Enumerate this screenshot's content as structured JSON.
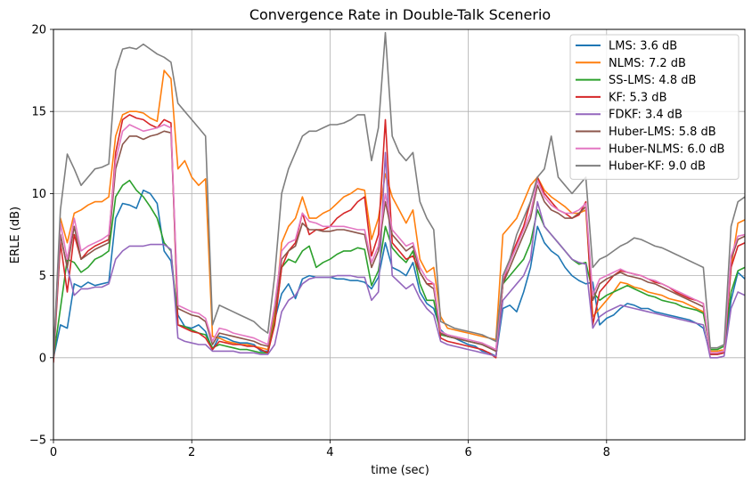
{
  "chart_data": {
    "type": "line",
    "title": "Convergence Rate in Double-Talk Scenerio",
    "xlabel": "time (sec)",
    "ylabel": "ERLE (dB)",
    "xlim": [
      0,
      10
    ],
    "ylim": [
      -5,
      20
    ],
    "xticks": [
      0,
      2,
      4,
      6,
      8
    ],
    "yticks": [
      -5,
      0,
      5,
      10,
      15,
      20
    ],
    "grid": true,
    "legend_position": "top-right",
    "x": [
      0,
      0.1,
      0.2,
      0.3,
      0.4,
      0.5,
      0.6,
      0.7,
      0.8,
      0.9,
      1.0,
      1.1,
      1.2,
      1.3,
      1.4,
      1.5,
      1.6,
      1.7,
      1.8,
      1.9,
      2.0,
      2.1,
      2.2,
      2.3,
      2.4,
      2.5,
      2.6,
      2.7,
      2.8,
      2.9,
      3.0,
      3.1,
      3.2,
      3.3,
      3.4,
      3.5,
      3.6,
      3.7,
      3.8,
      3.9,
      4.0,
      4.1,
      4.2,
      4.3,
      4.4,
      4.5,
      4.6,
      4.7,
      4.8,
      4.9,
      5.0,
      5.1,
      5.2,
      5.3,
      5.4,
      5.5,
      5.6,
      5.7,
      5.8,
      5.9,
      6.0,
      6.1,
      6.2,
      6.3,
      6.4,
      6.5,
      6.6,
      6.7,
      6.8,
      6.9,
      7.0,
      7.1,
      7.2,
      7.3,
      7.4,
      7.5,
      7.6,
      7.7,
      7.8,
      7.9,
      8.0,
      8.1,
      8.2,
      8.3,
      8.4,
      8.5,
      8.6,
      8.7,
      8.8,
      8.9,
      9.0,
      9.1,
      9.2,
      9.3,
      9.4,
      9.5,
      9.6,
      9.7,
      9.8,
      9.9,
      10.0
    ],
    "series": [
      {
        "name": "LMS: 3.6 dB",
        "color": "#1f77b4",
        "values": [
          0,
          2,
          1.8,
          4.5,
          4.3,
          4.6,
          4.4,
          4.5,
          4.6,
          8.5,
          9.4,
          9.3,
          9.1,
          10.2,
          10.0,
          9.4,
          6.5,
          5.9,
          2.6,
          1.9,
          1.8,
          2.0,
          1.6,
          0.5,
          1.3,
          1.2,
          1.0,
          0.9,
          0.9,
          0.8,
          0.4,
          0.4,
          2.3,
          3.9,
          4.5,
          3.6,
          4.8,
          5.0,
          4.9,
          4.9,
          4.9,
          4.8,
          4.8,
          4.7,
          4.7,
          4.6,
          4.2,
          4.9,
          7.0,
          5.5,
          5.3,
          5.0,
          5.8,
          4.0,
          3.3,
          3.0,
          1.7,
          1.3,
          1.2,
          1.0,
          0.8,
          0.7,
          0.4,
          0.3,
          0.1,
          3.0,
          3.2,
          2.8,
          4.0,
          5.5,
          8.0,
          7.0,
          6.5,
          6.2,
          5.5,
          5.0,
          4.7,
          4.5,
          4.6,
          2.0,
          2.4,
          2.6,
          3.0,
          3.3,
          3.2,
          3.0,
          3.0,
          2.8,
          2.7,
          2.6,
          2.5,
          2.4,
          2.3,
          2.1,
          1.8,
          0.2,
          0.2,
          0.3,
          3.5,
          5.2,
          4.8
        ]
      },
      {
        "name": "NLMS: 7.2 dB",
        "color": "#ff7f0e",
        "values": [
          0,
          8.5,
          7.0,
          8.8,
          9.0,
          9.3,
          9.5,
          9.5,
          9.8,
          13.5,
          14.8,
          15.0,
          15.0,
          14.9,
          14.6,
          14.4,
          17.5,
          17.0,
          11.5,
          12.0,
          11.0,
          10.5,
          10.9,
          1.3,
          1.2,
          1.0,
          0.9,
          0.8,
          0.8,
          0.7,
          0.6,
          0.5,
          2.5,
          7.0,
          8.0,
          8.5,
          9.8,
          8.5,
          8.5,
          8.8,
          9.0,
          9.4,
          9.8,
          10.0,
          10.3,
          10.2,
          7.2,
          8.5,
          11.2,
          9.8,
          9.0,
          8.2,
          9.0,
          6.0,
          5.2,
          5.5,
          2.5,
          1.8,
          1.7,
          1.6,
          1.5,
          1.4,
          1.3,
          1.2,
          1.1,
          7.5,
          8.0,
          8.5,
          9.5,
          10.5,
          11.0,
          10.2,
          9.8,
          9.5,
          9.2,
          8.8,
          8.8,
          9.0,
          2.5,
          3.0,
          3.5,
          4.0,
          4.6,
          4.5,
          4.3,
          4.2,
          4.0,
          3.9,
          3.8,
          3.6,
          3.5,
          3.4,
          3.2,
          3.0,
          2.8,
          0.4,
          0.4,
          0.5,
          5.5,
          8.2,
          8.4
        ]
      },
      {
        "name": "SS-LMS: 4.8 dB",
        "color": "#2ca02c",
        "values": [
          0,
          3.0,
          6.0,
          5.8,
          5.2,
          5.5,
          6.0,
          6.2,
          6.5,
          9.8,
          10.5,
          10.8,
          10.2,
          9.8,
          9.2,
          8.5,
          7.0,
          6.5,
          2.0,
          1.9,
          1.7,
          1.5,
          1.4,
          0.6,
          0.8,
          0.7,
          0.6,
          0.5,
          0.5,
          0.4,
          0.3,
          0.3,
          2.2,
          5.5,
          6.0,
          5.8,
          6.5,
          6.8,
          5.5,
          5.8,
          6.0,
          6.3,
          6.5,
          6.5,
          6.7,
          6.6,
          4.4,
          5.3,
          8.0,
          6.7,
          6.2,
          5.8,
          6.5,
          4.5,
          3.5,
          3.5,
          1.4,
          1.3,
          1.2,
          1.1,
          1.0,
          0.9,
          0.8,
          0.6,
          0.4,
          4.5,
          5.0,
          5.5,
          6.0,
          7.0,
          9.0,
          8.0,
          7.5,
          7.0,
          6.5,
          6.0,
          5.7,
          5.8,
          4.0,
          3.5,
          3.8,
          4.0,
          4.2,
          4.4,
          4.2,
          4.0,
          3.8,
          3.7,
          3.5,
          3.4,
          3.3,
          3.1,
          3.0,
          2.9,
          2.7,
          0.5,
          0.5,
          0.7,
          4.0,
          5.3,
          5.5
        ]
      },
      {
        "name": "KF: 5.3 dB",
        "color": "#d62728",
        "values": [
          -0.3,
          7.0,
          4.0,
          7.5,
          6.0,
          6.5,
          6.8,
          7.0,
          7.2,
          12.5,
          14.5,
          14.8,
          14.6,
          14.5,
          14.2,
          14.0,
          14.5,
          14.3,
          2.0,
          1.8,
          1.6,
          1.5,
          1.2,
          0.5,
          1.0,
          0.9,
          0.8,
          0.8,
          0.7,
          0.7,
          0.5,
          0.3,
          2.0,
          5.5,
          6.5,
          7.0,
          8.8,
          7.5,
          7.8,
          7.8,
          8.0,
          8.5,
          8.8,
          9.0,
          9.5,
          9.8,
          6.2,
          7.5,
          14.5,
          7.0,
          6.5,
          6.0,
          6.2,
          5.2,
          4.5,
          4.5,
          1.2,
          1.0,
          0.9,
          0.8,
          0.7,
          0.6,
          0.5,
          0.3,
          0.0,
          4.5,
          6.0,
          7.0,
          8.0,
          9.5,
          11.0,
          10.0,
          9.5,
          9.0,
          8.8,
          8.5,
          8.7,
          9.5,
          2.0,
          4.0,
          4.5,
          5.0,
          5.3,
          5.2,
          5.1,
          5.0,
          4.8,
          4.6,
          4.5,
          4.3,
          4.0,
          3.8,
          3.6,
          3.5,
          3.3,
          0.2,
          0.2,
          0.3,
          5.5,
          6.8,
          7.0
        ]
      },
      {
        "name": "FDKF: 3.4 dB",
        "color": "#9467bd",
        "values": [
          0,
          7.5,
          5.5,
          3.8,
          4.2,
          4.2,
          4.3,
          4.3,
          4.5,
          6.0,
          6.5,
          6.8,
          6.8,
          6.8,
          6.9,
          6.9,
          6.9,
          6.6,
          1.2,
          1.0,
          0.9,
          0.8,
          0.8,
          0.4,
          0.4,
          0.4,
          0.4,
          0.3,
          0.3,
          0.3,
          0.2,
          0.2,
          0.8,
          2.8,
          3.5,
          3.8,
          4.5,
          4.8,
          4.9,
          4.9,
          4.9,
          5.0,
          5.0,
          5.0,
          4.9,
          4.9,
          3.5,
          4.0,
          12.5,
          5.0,
          4.6,
          4.2,
          4.5,
          3.6,
          3.0,
          2.6,
          1.0,
          0.8,
          0.7,
          0.6,
          0.5,
          0.4,
          0.3,
          0.2,
          0.1,
          3.5,
          4.0,
          4.5,
          5.0,
          6.0,
          9.5,
          8.0,
          7.5,
          7.0,
          6.5,
          6.0,
          5.8,
          5.7,
          1.8,
          2.5,
          2.8,
          3.0,
          3.2,
          3.1,
          3.0,
          2.9,
          2.8,
          2.7,
          2.6,
          2.5,
          2.4,
          2.3,
          2.2,
          2.1,
          2.0,
          0.0,
          0.0,
          0.1,
          3.0,
          4.0,
          3.8
        ]
      },
      {
        "name": "Huber-LMS: 5.8 dB",
        "color": "#8c564b",
        "values": [
          0,
          7.5,
          5.5,
          8.0,
          6.0,
          6.3,
          6.6,
          6.8,
          7.0,
          11.5,
          13.0,
          13.5,
          13.5,
          13.3,
          13.5,
          13.6,
          13.8,
          13.7,
          3.0,
          2.8,
          2.6,
          2.5,
          2.2,
          0.8,
          1.5,
          1.4,
          1.3,
          1.2,
          1.1,
          1.0,
          0.8,
          0.7,
          3.0,
          6.0,
          6.5,
          6.8,
          8.2,
          7.8,
          7.8,
          7.7,
          7.7,
          7.8,
          7.8,
          7.7,
          7.6,
          7.5,
          5.5,
          6.5,
          9.5,
          7.5,
          7.0,
          6.5,
          6.8,
          5.2,
          4.5,
          4.2,
          1.5,
          1.3,
          1.2,
          1.1,
          1.0,
          0.9,
          0.8,
          0.6,
          0.4,
          4.5,
          5.5,
          6.5,
          7.5,
          8.5,
          10.5,
          9.5,
          9.0,
          8.8,
          8.5,
          8.5,
          8.8,
          9.2,
          3.5,
          4.5,
          4.8,
          5.0,
          5.2,
          5.0,
          4.9,
          4.8,
          4.6,
          4.5,
          4.3,
          4.1,
          3.9,
          3.7,
          3.5,
          3.3,
          3.1,
          0.3,
          0.3,
          0.4,
          6.0,
          7.2,
          7.4
        ]
      },
      {
        "name": "Huber-NLMS: 6.0 dB",
        "color": "#e377c2",
        "values": [
          0,
          8.2,
          6.0,
          8.5,
          6.5,
          6.8,
          7.0,
          7.2,
          7.5,
          12.0,
          13.8,
          14.2,
          14.0,
          13.8,
          13.9,
          14.0,
          14.2,
          14.0,
          3.2,
          3.0,
          2.8,
          2.7,
          2.4,
          1.0,
          1.8,
          1.7,
          1.5,
          1.4,
          1.3,
          1.2,
          1.0,
          0.8,
          3.2,
          6.5,
          7.0,
          7.2,
          8.8,
          8.3,
          8.2,
          8.0,
          8.0,
          8.0,
          8.0,
          7.9,
          7.8,
          7.8,
          5.8,
          6.8,
          10.0,
          7.8,
          7.3,
          6.8,
          7.0,
          5.5,
          4.8,
          4.5,
          1.6,
          1.4,
          1.3,
          1.2,
          1.1,
          1.0,
          0.9,
          0.7,
          0.5,
          4.8,
          5.8,
          6.8,
          7.8,
          8.8,
          10.8,
          9.8,
          9.3,
          9.0,
          8.8,
          8.8,
          9.0,
          9.4,
          3.8,
          4.8,
          5.0,
          5.2,
          5.4,
          5.2,
          5.1,
          5.0,
          4.8,
          4.7,
          4.5,
          4.3,
          4.1,
          3.9,
          3.7,
          3.5,
          3.3,
          0.3,
          0.3,
          0.4,
          6.2,
          7.4,
          7.5
        ]
      },
      {
        "name": "Huber-KF: 9.0 dB",
        "color": "#7f7f7f",
        "values": [
          0,
          9.0,
          12.4,
          11.5,
          10.5,
          11.0,
          11.5,
          11.6,
          11.8,
          17.5,
          18.8,
          18.9,
          18.8,
          19.1,
          18.8,
          18.5,
          18.3,
          18.0,
          15.5,
          15.0,
          14.5,
          14.0,
          13.5,
          2.0,
          3.2,
          3.0,
          2.8,
          2.6,
          2.4,
          2.2,
          1.8,
          1.5,
          5.0,
          10.0,
          11.5,
          12.5,
          13.5,
          13.8,
          13.8,
          14.0,
          14.2,
          14.2,
          14.3,
          14.5,
          14.8,
          14.8,
          12.0,
          14.0,
          19.8,
          13.5,
          12.5,
          12.0,
          12.5,
          9.5,
          8.5,
          7.8,
          2.2,
          2.0,
          1.8,
          1.7,
          1.6,
          1.5,
          1.4,
          1.2,
          1.0,
          5.0,
          6.0,
          7.5,
          8.5,
          9.5,
          11.0,
          11.5,
          13.5,
          11.0,
          10.5,
          10.0,
          10.5,
          11.0,
          5.5,
          6.0,
          6.2,
          6.5,
          6.8,
          7.0,
          7.3,
          7.2,
          7.0,
          6.8,
          6.7,
          6.5,
          6.3,
          6.1,
          5.9,
          5.7,
          5.5,
          0.6,
          0.6,
          0.8,
          8.0,
          9.5,
          9.8
        ]
      }
    ]
  }
}
